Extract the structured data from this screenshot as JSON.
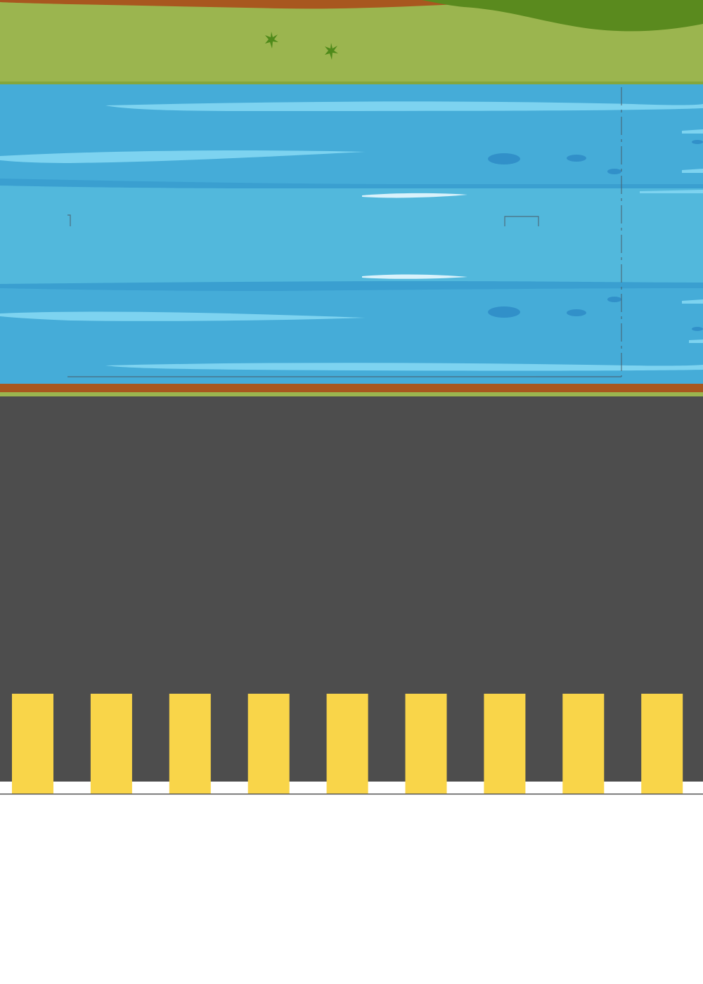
{
  "scene": {
    "description_free": true,
    "colors": {
      "page_background": "#ffffff",
      "grass_light": "#9bb54f",
      "grass_dark": "#5a8a1e",
      "dirt": "#a8571f",
      "river_light": "#52b8dc",
      "river_mid": "#45acd8",
      "river_dark": "#3a9fd0",
      "ripple_highlight": "#7dd3f0",
      "foam": "#d9f2fb",
      "ripple_spot": "#3190c9",
      "road_asphalt": "#4d4d4d",
      "crosswalk_yellow": "#f9d549",
      "plant": "#4f8a1a"
    },
    "crosswalk": {
      "stripe_count": 9
    },
    "icons": {
      "plant": "plant-icon"
    }
  }
}
